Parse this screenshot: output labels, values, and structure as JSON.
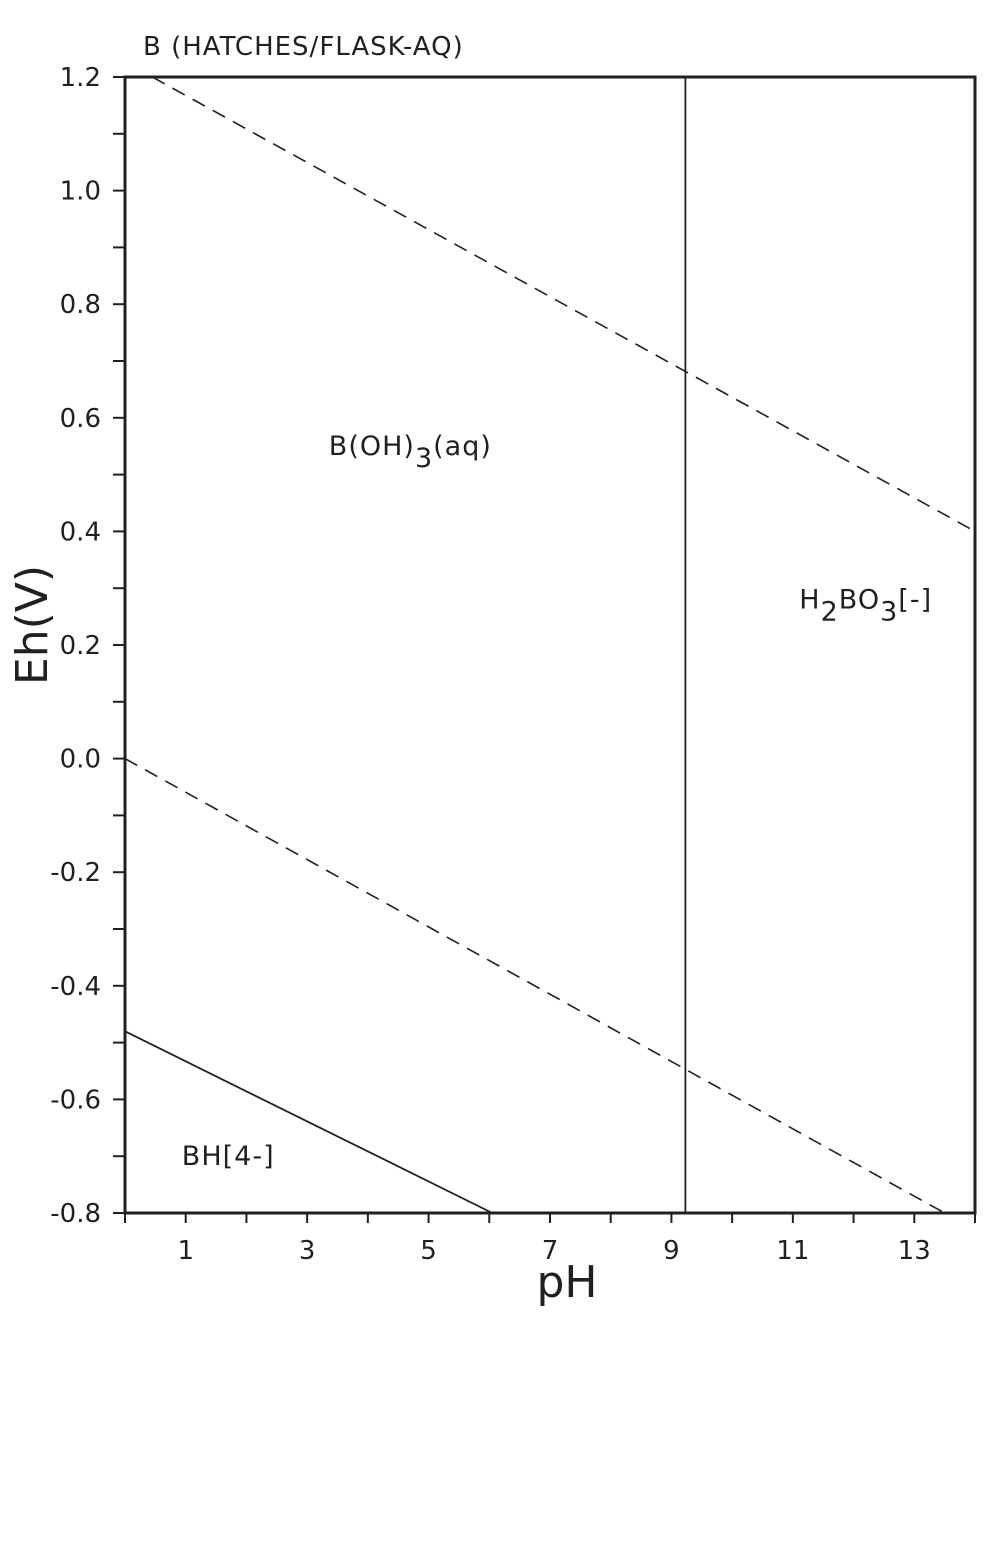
{
  "chart_data": {
    "type": "line",
    "title": "B (HATCHES/FLASK-AQ)",
    "xlabel": "pH",
    "ylabel": "Eh(V)",
    "xlim": [
      0,
      14
    ],
    "ylim": [
      -0.8,
      1.2
    ],
    "x_ticks": [
      1,
      3,
      5,
      7,
      9,
      11,
      13
    ],
    "y_ticks": [
      "1.2",
      "1.0",
      "0.8",
      "0.6",
      "0.4",
      "0.2",
      "0.0",
      "-0.2",
      "-0.4",
      "-0.6",
      "-0.8"
    ],
    "y_tick_values": [
      1.2,
      1.0,
      0.8,
      0.6,
      0.4,
      0.2,
      0.0,
      -0.2,
      -0.4,
      -0.6,
      -0.8
    ],
    "grid": false,
    "series": [
      {
        "style": "dashed",
        "points": [
          [
            0.45,
            1.2
          ],
          [
            14,
            0.4
          ]
        ]
      },
      {
        "style": "dashed",
        "points": [
          [
            0,
            0.0
          ],
          [
            13.5,
            -0.8
          ]
        ]
      },
      {
        "style": "solid",
        "points": [
          [
            9.23,
            -0.8
          ],
          [
            9.23,
            1.2
          ]
        ]
      },
      {
        "style": "solid",
        "points": [
          [
            0,
            -0.48
          ],
          [
            6.05,
            -0.8
          ]
        ]
      }
    ],
    "regions": [
      {
        "base": "B(OH)",
        "sub": "3",
        "tail": "(aq)",
        "x": 4.7,
        "y": 0.55
      },
      {
        "base": "H",
        "sub": "2",
        "mid": "BO",
        "sub2": "3",
        "tail": "[-]",
        "x": 12.2,
        "y": 0.28
      },
      {
        "base": "BH[4-]",
        "x": 1.7,
        "y": -0.7
      }
    ]
  }
}
